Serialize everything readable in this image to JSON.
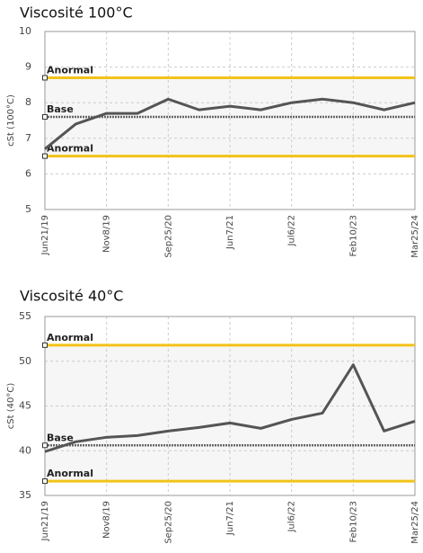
{
  "chart_data": [
    {
      "type": "line",
      "title": "Viscosité 100°C",
      "y_label": "cSt (100°C)",
      "categories": [
        "Jun21/19",
        null,
        "Nov8/19",
        null,
        "Sep25/20",
        null,
        "Jun7/21",
        null,
        "Jul6/22",
        null,
        "Feb10/23",
        null,
        "Mar25/24"
      ],
      "values": [
        6.7,
        7.4,
        7.7,
        7.7,
        8.1,
        7.8,
        7.9,
        7.8,
        8.0,
        8.1,
        8.0,
        7.8,
        8.0
      ],
      "color": "#555555",
      "ylim": [
        5,
        10
      ],
      "yticks": [
        5,
        6,
        7,
        8,
        9,
        10
      ],
      "grid": true,
      "reference_lines": [
        {
          "label": "Anormal",
          "value": 8.7,
          "color": "#f2c318"
        },
        {
          "label": "Base",
          "value": 7.6,
          "color": "#666666"
        },
        {
          "label": "Anormal",
          "value": 6.5,
          "color": "#f2c318"
        }
      ]
    },
    {
      "type": "line",
      "title": "Viscosité 40°C",
      "y_label": "cSt (40°C)",
      "categories": [
        "Jun21/19",
        null,
        "Nov8/19",
        null,
        "Sep25/20",
        null,
        "Jun7/21",
        null,
        "Jul6/22",
        null,
        "Feb10/23",
        null,
        "Mar25/24"
      ],
      "values": [
        39.9,
        41.0,
        41.5,
        41.7,
        42.2,
        42.6,
        43.1,
        42.5,
        43.5,
        44.2,
        49.6,
        42.2,
        43.3
      ],
      "color": "#555555",
      "ylim": [
        35,
        55
      ],
      "yticks": [
        35,
        40,
        45,
        50,
        55
      ],
      "grid": true,
      "reference_lines": [
        {
          "label": "Anormal",
          "value": 51.8,
          "color": "#f2c318"
        },
        {
          "label": "Base",
          "value": 40.6,
          "color": "#666666"
        },
        {
          "label": "Anormal",
          "value": 36.6,
          "color": "#f2c318"
        }
      ]
    }
  ]
}
